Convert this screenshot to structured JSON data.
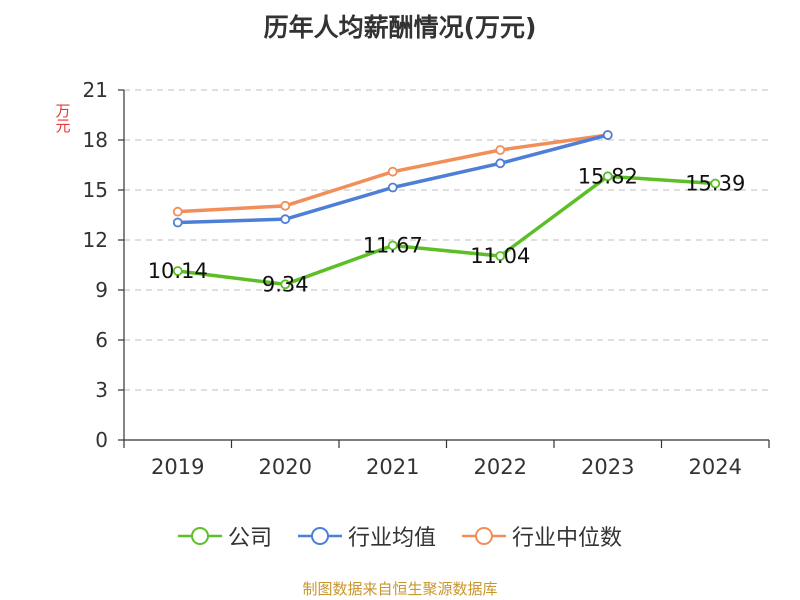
{
  "chart_data": {
    "type": "line",
    "title": "历年人均薪酬情况(万元)",
    "ylabel": "万元",
    "xlabel": "",
    "categories": [
      "2019",
      "2020",
      "2021",
      "2022",
      "2023",
      "2024"
    ],
    "ylim": [
      0,
      21
    ],
    "yticks": [
      0,
      3,
      6,
      9,
      12,
      15,
      18,
      21
    ],
    "grid": true,
    "legend_position": "bottom",
    "series": [
      {
        "name": "公司",
        "color": "#5dbf27",
        "values": [
          10.14,
          9.34,
          11.67,
          11.04,
          15.82,
          15.39
        ],
        "labels": [
          "10.14",
          "9.34",
          "11.67",
          "11.04",
          "15.82",
          "15.39"
        ]
      },
      {
        "name": "行业均值",
        "color": "#4e7fd6",
        "values": [
          13.05,
          13.25,
          15.15,
          16.6,
          18.3,
          null
        ],
        "labels": null
      },
      {
        "name": "行业中位数",
        "color": "#f28e59",
        "values": [
          13.7,
          14.05,
          16.1,
          17.4,
          18.3,
          null
        ],
        "labels": null
      }
    ]
  },
  "source": "制图数据来自恒生聚源数据库"
}
